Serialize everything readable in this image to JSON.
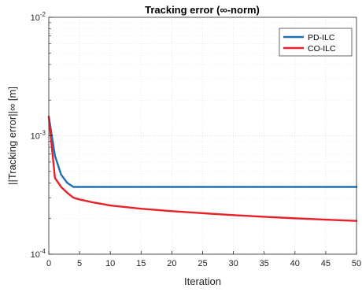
{
  "chart_data": {
    "type": "line",
    "title": "Tracking error (∞-norm)",
    "xlabel": "Iteration",
    "ylabel": "||Tracking error||∞ [m]",
    "xlim": [
      0,
      50
    ],
    "ylim": [
      0.0001,
      0.01
    ],
    "y_scale": "log",
    "grid": true,
    "legend_position": "top-right",
    "x_ticks": [
      0,
      5,
      10,
      15,
      20,
      25,
      30,
      35,
      40,
      45,
      50
    ],
    "y_ticks": [
      {
        "value": 0.0001,
        "base": "10",
        "exp": "-4"
      },
      {
        "value": 0.001,
        "base": "10",
        "exp": "-3"
      },
      {
        "value": 0.01,
        "base": "10",
        "exp": "-2"
      }
    ],
    "series": [
      {
        "name": "PD-ILC",
        "color": "#1f6fb5",
        "x": [
          0,
          1,
          2,
          3,
          4,
          5,
          6,
          8,
          10,
          15,
          20,
          25,
          30,
          35,
          40,
          45,
          50
        ],
        "y": [
          0.00145,
          0.00068,
          0.00047,
          0.0004,
          0.00037,
          0.00037,
          0.00037,
          0.00037,
          0.00037,
          0.00037,
          0.00037,
          0.00037,
          0.00037,
          0.00037,
          0.00037,
          0.00037,
          0.00037
        ]
      },
      {
        "name": "CO-ILC",
        "color": "#e8202a",
        "x": [
          0,
          1,
          2,
          3,
          4,
          5,
          7,
          10,
          15,
          20,
          25,
          30,
          35,
          40,
          45,
          50
        ],
        "y": [
          0.00145,
          0.00044,
          0.00037,
          0.00033,
          0.0003,
          0.00029,
          0.000275,
          0.000258,
          0.000242,
          0.000231,
          0.000222,
          0.000214,
          0.000207,
          0.000201,
          0.000196,
          0.000191
        ]
      }
    ]
  }
}
